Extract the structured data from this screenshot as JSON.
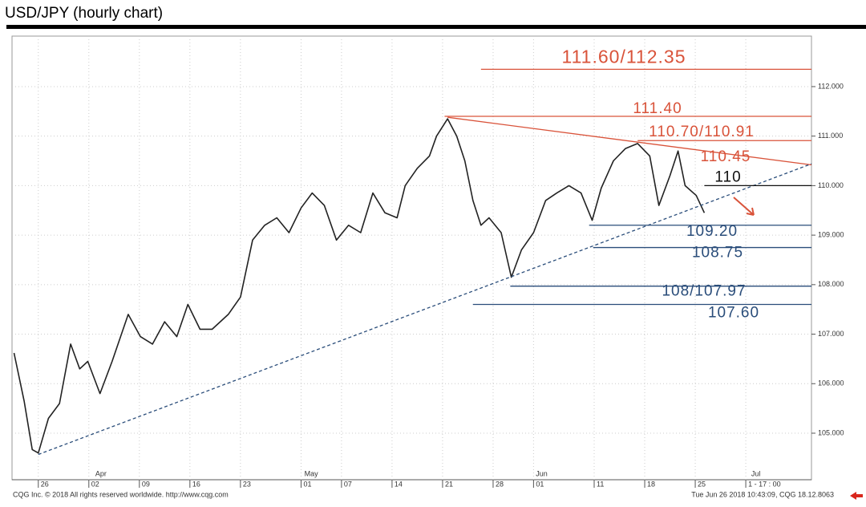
{
  "chart_data": {
    "type": "line",
    "title": "USD/JPY (hourly chart)",
    "series": [
      {
        "color": "#222222",
        "x": [
          -2.4,
          -1.4,
          -0.6,
          0,
          1.0,
          2.1,
          3.2,
          4.1,
          4.9,
          6.1,
          7.3,
          8.9,
          10.1,
          11.3,
          12.5,
          13.7,
          14.8,
          16.0,
          17.2,
          18.8,
          20.0,
          21.2,
          22.4,
          23.6,
          24.8,
          26.0,
          27.1,
          28.3,
          29.5,
          30.7,
          31.9,
          33.1,
          34.3,
          35.5,
          36.3,
          37.5,
          38.7,
          39.4,
          40.5,
          41.4,
          42.2,
          43.0,
          43.8,
          44.6,
          45.8,
          46.8,
          47.8,
          49.0,
          50.2,
          51.3,
          52.5,
          53.7,
          54.8,
          55.7,
          56.9,
          58.1,
          59.3,
          60.5,
          61.4,
          62.5,
          63.3,
          64.0,
          65.1,
          65.9
        ],
        "values": [
          106.62,
          105.65,
          104.67,
          104.6,
          105.3,
          105.6,
          106.8,
          106.3,
          106.45,
          105.8,
          106.45,
          107.4,
          106.95,
          106.8,
          107.25,
          106.95,
          107.6,
          107.1,
          107.1,
          107.4,
          107.75,
          108.9,
          109.2,
          109.35,
          109.05,
          109.55,
          109.85,
          109.6,
          108.9,
          109.2,
          109.05,
          109.85,
          109.45,
          109.35,
          110.0,
          110.35,
          110.6,
          111.0,
          111.35,
          111.0,
          110.5,
          109.7,
          109.2,
          109.35,
          109.05,
          108.15,
          108.7,
          109.05,
          109.7,
          109.85,
          110.0,
          109.85,
          109.3,
          109.95,
          110.5,
          110.75,
          110.85,
          110.6,
          109.6,
          110.2,
          110.7,
          110.0,
          109.8,
          109.45
        ]
      }
    ],
    "xlim": [
      -2.6,
      76.5
    ],
    "xticks": [
      {
        "value": 0,
        "label": "26"
      },
      {
        "value": 5,
        "label": "02"
      },
      {
        "value": 10,
        "label": "09"
      },
      {
        "value": 15,
        "label": "16"
      },
      {
        "value": 20,
        "label": "23"
      },
      {
        "value": 26,
        "label": "01"
      },
      {
        "value": 30,
        "label": "07"
      },
      {
        "value": 35,
        "label": "14"
      },
      {
        "value": 40,
        "label": "21"
      },
      {
        "value": 45,
        "label": "28"
      },
      {
        "value": 49,
        "label": "01"
      },
      {
        "value": 55,
        "label": "11"
      },
      {
        "value": 60,
        "label": "18"
      },
      {
        "value": 65,
        "label": "25"
      },
      {
        "value": 70,
        "label": "1 - 17 : 00"
      }
    ],
    "month_labels": [
      {
        "value": 6.2,
        "label": "Apr"
      },
      {
        "value": 27,
        "label": "May"
      },
      {
        "value": 49.8,
        "label": "Jun"
      },
      {
        "value": 71,
        "label": "Jul"
      }
    ],
    "ylim": [
      104.06,
      113.02
    ],
    "yticks": [
      {
        "value": 105,
        "label": "105.000"
      },
      {
        "value": 106,
        "label": "106.000"
      },
      {
        "value": 107,
        "label": "107.000"
      },
      {
        "value": 108,
        "label": "108.000"
      },
      {
        "value": 109,
        "label": "109.000"
      },
      {
        "value": 110,
        "label": "110.000"
      },
      {
        "value": 111,
        "label": "111.000"
      },
      {
        "value": 112,
        "label": "112.000"
      }
    ],
    "grid": true,
    "levels": [
      {
        "value": 112.35,
        "label": "111.60/112.35",
        "color": "#d9533a",
        "x_start": 43.8
      },
      {
        "value": 111.4,
        "label": "111.40",
        "color": "#d9533a",
        "x_start": 40.2
      },
      {
        "value": 110.91,
        "label": "110.70/110.91",
        "color": "#d9533a",
        "x_start": 59.3
      },
      {
        "value": 110,
        "label": "110",
        "color": "#111111",
        "x_start": 65.9
      },
      {
        "value": 109.2,
        "label": "109.20",
        "color": "#2a4d7a",
        "x_start": 54.5
      },
      {
        "value": 108.75,
        "label": "108.75",
        "color": "#2a4d7a",
        "x_start": 54.9
      },
      {
        "value": 107.97,
        "label": "108/107.97",
        "color": "#2a4d7a",
        "x_start": 46.7
      },
      {
        "value": 107.6,
        "label": "107.60",
        "color": "#2a4d7a",
        "x_start": 43
      }
    ],
    "trendlines": [
      {
        "x": [
          40.5,
          76.5
        ],
        "values": [
          111.38,
          110.42
        ],
        "color": "#d9533a",
        "dashed": false,
        "label": "110.45"
      },
      {
        "x": [
          0,
          76.5
        ],
        "values": [
          104.57,
          110.44
        ],
        "color": "#2a4d7a",
        "dashed": true
      }
    ],
    "footer_left": "CQG Inc. © 2018 All rights reserved worldwide. http://www.cqg.com",
    "footer_right": "Tue Jun 26 2018 10:43:09, CQG 18.12.8063"
  }
}
